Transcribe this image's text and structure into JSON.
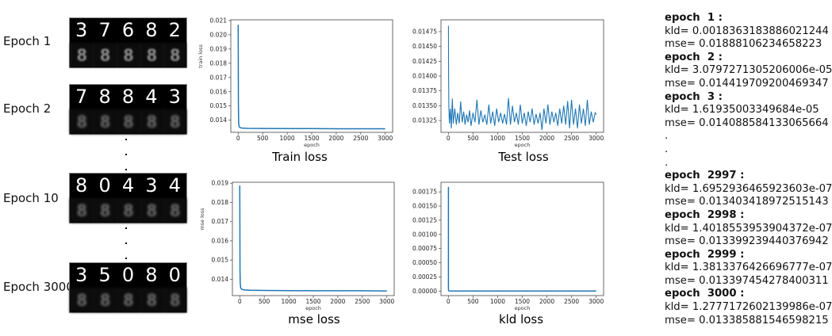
{
  "epochs_panel": [
    {
      "label": "Epoch 1",
      "digits": [
        "3",
        "7",
        "6",
        "8",
        "2"
      ]
    },
    {
      "label": "Epoch 2",
      "digits": [
        "7",
        "8",
        "8",
        "4",
        "3"
      ]
    },
    {
      "label": "Epoch 10",
      "digits": [
        "8",
        "0",
        "4",
        "3",
        "4"
      ]
    },
    {
      "label": "Epoch 3000",
      "digits": [
        "3",
        "5",
        "0",
        "8",
        "0"
      ]
    }
  ],
  "line_color": "#1f77b4",
  "chart_data": [
    {
      "type": "line",
      "caption": "Train loss",
      "xlabel": "epoch",
      "ylabel": "train loss",
      "xlim": [
        -150,
        3150
      ],
      "ylim": [
        0.01315,
        0.02105
      ],
      "xticks": [
        0,
        500,
        1000,
        1500,
        2000,
        2500,
        3000
      ],
      "yticks": [
        0.014,
        0.015,
        0.016,
        0.017,
        0.018,
        0.019,
        0.02,
        0.021
      ],
      "ytick_labels": [
        "0.014",
        "0.015",
        "0.016",
        "0.017",
        "0.018",
        "0.019",
        "0.020",
        "0.021"
      ],
      "x": [
        1,
        5,
        10,
        20,
        40,
        80,
        200,
        500,
        1000,
        1500,
        2000,
        2500,
        3000
      ],
      "y": [
        0.0207,
        0.015,
        0.0138,
        0.01355,
        0.01348,
        0.01345,
        0.01343,
        0.01342,
        0.01341,
        0.01341,
        0.0134,
        0.0134,
        0.0134
      ]
    },
    {
      "type": "line",
      "caption": "Test loss",
      "xlabel": "epoch",
      "ylabel": "",
      "xlim": [
        -150,
        3150
      ],
      "ylim": [
        0.01305,
        0.01495
      ],
      "xticks": [
        0,
        500,
        1000,
        1500,
        2000,
        2500,
        3000
      ],
      "yticks": [
        0.01325,
        0.0135,
        0.01375,
        0.014,
        0.01425,
        0.0145,
        0.01475
      ],
      "ytick_labels": [
        "0.01325",
        "0.01350",
        "0.01375",
        "0.01400",
        "0.01425",
        "0.01450",
        "0.01475"
      ],
      "x": [
        1,
        5,
        10,
        20,
        40,
        60,
        80,
        100,
        130,
        160,
        190,
        220,
        250,
        280,
        310,
        340,
        370,
        400,
        430,
        460,
        500,
        540,
        580,
        620,
        660,
        700,
        740,
        780,
        820,
        860,
        900,
        940,
        980,
        1020,
        1060,
        1100,
        1140,
        1180,
        1220,
        1260,
        1300,
        1340,
        1380,
        1420,
        1460,
        1500,
        1540,
        1580,
        1620,
        1660,
        1700,
        1740,
        1780,
        1820,
        1860,
        1900,
        1940,
        1980,
        2020,
        2060,
        2100,
        2140,
        2180,
        2220,
        2260,
        2300,
        2340,
        2380,
        2420,
        2460,
        2500,
        2540,
        2580,
        2620,
        2660,
        2700,
        2740,
        2780,
        2820,
        2860,
        2900,
        2940,
        2980,
        3000
      ],
      "y": [
        0.01485,
        0.014,
        0.0135,
        0.0132,
        0.01345,
        0.01312,
        0.01362,
        0.0132,
        0.01345,
        0.01318,
        0.01338,
        0.0132,
        0.01357,
        0.01322,
        0.0134,
        0.01318,
        0.01335,
        0.01322,
        0.01342,
        0.01316,
        0.01338,
        0.01322,
        0.0136,
        0.01318,
        0.01342,
        0.01322,
        0.01335,
        0.01318,
        0.01352,
        0.0132,
        0.0134,
        0.01316,
        0.01345,
        0.01322,
        0.01338,
        0.0132,
        0.01336,
        0.01318,
        0.01363,
        0.01318,
        0.0135,
        0.01322,
        0.01338,
        0.01318,
        0.01352,
        0.0132,
        0.01338,
        0.01316,
        0.0134,
        0.01322,
        0.01345,
        0.01318,
        0.01336,
        0.0132,
        0.01338,
        0.01309,
        0.01345,
        0.0132,
        0.01352,
        0.01318,
        0.0134,
        0.01322,
        0.01338,
        0.01316,
        0.01345,
        0.0132,
        0.0135,
        0.01318,
        0.01358,
        0.01312,
        0.0136,
        0.01318,
        0.01345,
        0.01312,
        0.01352,
        0.0132,
        0.01345,
        0.01316,
        0.0136,
        0.01318,
        0.0134,
        0.01322,
        0.01338,
        0.01335
      ]
    },
    {
      "type": "line",
      "caption": "mse loss",
      "xlabel": "epoch",
      "ylabel": "mse loss",
      "xlim": [
        -150,
        3150
      ],
      "ylim": [
        0.01315,
        0.01905
      ],
      "xticks": [
        0,
        500,
        1000,
        1500,
        2000,
        2500,
        3000
      ],
      "yticks": [
        0.014,
        0.015,
        0.016,
        0.017,
        0.018,
        0.019
      ],
      "ytick_labels": [
        "0.014",
        "0.015",
        "0.016",
        "0.017",
        "0.018",
        "0.019"
      ],
      "x": [
        1,
        5,
        10,
        20,
        40,
        80,
        200,
        500,
        1000,
        1500,
        2000,
        2500,
        3000
      ],
      "y": [
        0.01888,
        0.0145,
        0.0138,
        0.01355,
        0.01348,
        0.01345,
        0.01343,
        0.01342,
        0.01341,
        0.0134,
        0.0134,
        0.0134,
        0.01339
      ]
    },
    {
      "type": "line",
      "caption": "kld loss",
      "xlabel": "epoch",
      "ylabel": "",
      "xlim": [
        -150,
        3150
      ],
      "ylim": [
        -8e-05,
        0.00192
      ],
      "xticks": [
        0,
        500,
        1000,
        1500,
        2000,
        2500,
        3000
      ],
      "yticks": [
        0,
        0.00025,
        0.0005,
        0.00075,
        0.001,
        0.00125,
        0.0015,
        0.00175
      ],
      "ytick_labels": [
        "0.00000",
        "0.00025",
        "0.00050",
        "0.00075",
        "0.00100",
        "0.00125",
        "0.00150",
        "0.00175"
      ],
      "x": [
        1,
        2,
        3,
        10,
        100,
        1000,
        2000,
        3000
      ],
      "y": [
        0.00184,
        3.08e-05,
        1.62e-05,
        2e-06,
        5e-07,
        2e-07,
        2e-07,
        1.3e-07
      ]
    }
  ],
  "log": {
    "entries_top": [
      {
        "epoch": "epoch  1 :",
        "kld": "kld= 0.0018363183886021244",
        "mse": "mse= 0.01888106234658223"
      },
      {
        "epoch": "epoch  2 :",
        "kld": "kld= 3.0797271305206006e-05",
        "mse": "mse= 0.014419709200469347"
      },
      {
        "epoch": "epoch  3 :",
        "kld": "kld= 1.61935003349684e-05",
        "mse": "mse= 0.014088584133065664"
      }
    ],
    "ellipsis": ".",
    "entries_bottom": [
      {
        "epoch": "epoch  2997 :",
        "kld": "kld= 1.6952936465923603e-07",
        "mse": "mse= 0.013403418972515143"
      },
      {
        "epoch": "epoch  2998 :",
        "kld": "kld= 1.4018553953904372e-07",
        "mse": "mse= 0.013399239440376942"
      },
      {
        "epoch": "epoch  2999 :",
        "kld": "kld= 1.3813376426696777e-07",
        "mse": "mse= 0.013397454278400311"
      },
      {
        "epoch": "epoch  3000 :",
        "kld": "kld= 1.2777172602139986e-07",
        "mse": "mse= 0.013385881546598215"
      }
    ]
  }
}
